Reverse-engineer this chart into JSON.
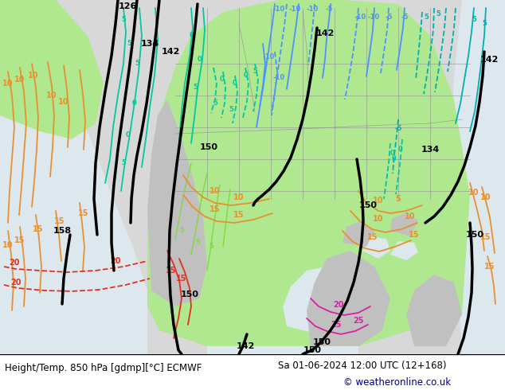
{
  "title_left": "Height/Temp. 850 hPa [gdmp][°C] ECMWF",
  "title_right": "Sa 01-06-2024 12:00 UTC (12+168)",
  "copyright": "© weatheronline.co.uk",
  "copyright_color": "#00008b",
  "footer_bg": "#ffffff",
  "map_sea_color": "#dce8ee",
  "map_land_gray": "#c8c8c8",
  "map_land_green": "#b0e890",
  "map_land_lgray": "#d8d8d8",
  "cyan_color": "#00c8a0",
  "cyan2_color": "#00b0b0",
  "teal_color": "#00b890",
  "lgreen_color": "#80d840",
  "blue_color": "#5090ff",
  "blue2_color": "#4080e0",
  "orange_color": "#e89030",
  "red_color": "#e03020",
  "magenta_color": "#d820a8",
  "black_color": "#000000"
}
